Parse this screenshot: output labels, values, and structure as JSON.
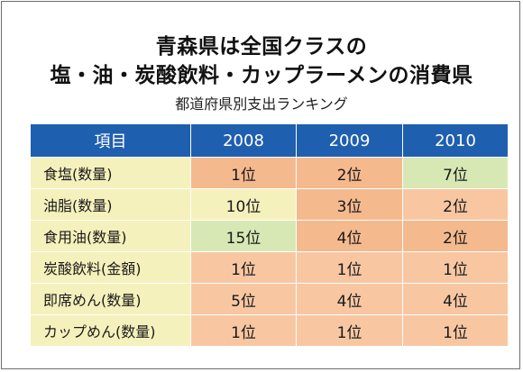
{
  "title_line1": "青森県は全国クラスの",
  "title_line2": "塩・油・炭酸飲料・カップラーメンの消費県",
  "subtitle": "都道府県別支出ランキング",
  "table": {
    "headers": [
      "項目",
      "2008",
      "2009",
      "2010"
    ],
    "rows": [
      {
        "item": "食塩(数量)",
        "values": [
          "1位",
          "2位",
          "7位"
        ],
        "colors": [
          "orange",
          "orange",
          "green"
        ]
      },
      {
        "item": "油脂(数量)",
        "values": [
          "10位",
          "3位",
          "2位"
        ],
        "colors": [
          "yellow",
          "orange",
          "peach"
        ]
      },
      {
        "item": "食用油(数量)",
        "values": [
          "15位",
          "4位",
          "2位"
        ],
        "colors": [
          "green",
          "orange",
          "orange"
        ]
      },
      {
        "item": "炭酸飲料(金額)",
        "values": [
          "1位",
          "1位",
          "1位"
        ],
        "colors": [
          "peach",
          "peach",
          "peach"
        ]
      },
      {
        "item": "即席めん(数量)",
        "values": [
          "5位",
          "4位",
          "4位"
        ],
        "colors": [
          "peach",
          "peach",
          "peach"
        ]
      },
      {
        "item": "カップめん(数量)",
        "values": [
          "1位",
          "1位",
          "1位"
        ],
        "colors": [
          "peach",
          "peach",
          "peach"
        ]
      }
    ]
  },
  "colors": {
    "header_bg": "#1f5fb0",
    "orange": "#f5b98e",
    "green": "#d7e8b5",
    "yellow": "#f5f1bc",
    "peach": "#f8c7a2"
  }
}
